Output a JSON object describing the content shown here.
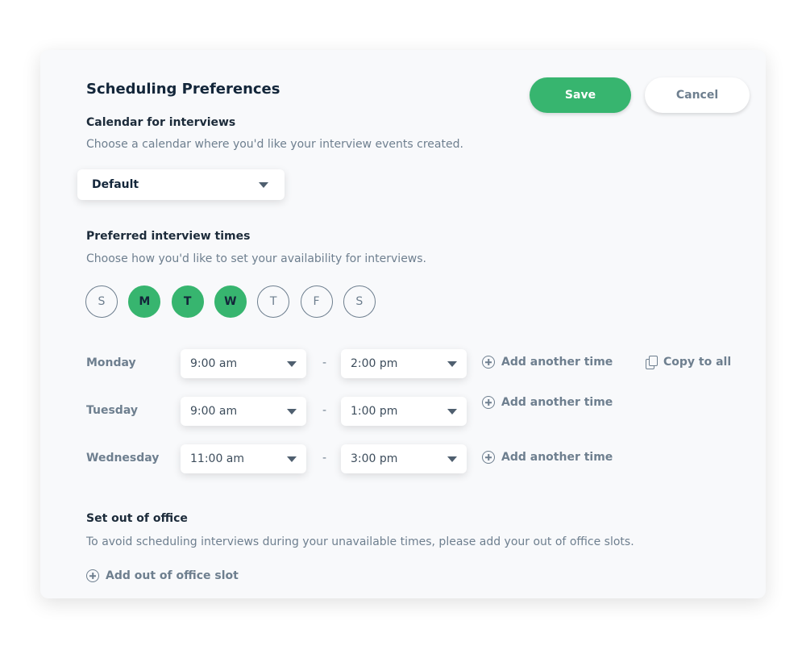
{
  "header": {
    "title": "Scheduling Preferences",
    "save_label": "Save",
    "cancel_label": "Cancel"
  },
  "calendar": {
    "label": "Calendar for interviews",
    "description": "Choose a calendar where you'd like your interview events created.",
    "selected": "Default"
  },
  "times": {
    "label": "Preferred interview times",
    "description": "Choose how you'd like to set your availability for interviews.",
    "days": [
      {
        "letter": "S",
        "selected": false
      },
      {
        "letter": "M",
        "selected": true
      },
      {
        "letter": "T",
        "selected": true
      },
      {
        "letter": "W",
        "selected": true
      },
      {
        "letter": "T",
        "selected": false
      },
      {
        "letter": "F",
        "selected": false
      },
      {
        "letter": "S",
        "selected": false
      }
    ],
    "separator": "-",
    "add_time_label": "Add another time",
    "copy_to_all_label": "Copy to all",
    "rows": [
      {
        "day": "Monday",
        "start": "9:00 am",
        "end": "2:00 pm"
      },
      {
        "day": "Tuesday",
        "start": "9:00 am",
        "end": "1:00 pm"
      },
      {
        "day": "Wednesday",
        "start": "11:00 am",
        "end": "3:00 pm"
      }
    ]
  },
  "out_of_office": {
    "label": "Set out of office",
    "description": "To avoid scheduling interviews during your unavailable times, please add your out of office slots.",
    "add_label": "Add out of office slot"
  },
  "colors": {
    "accent": "#37b56f",
    "text": "#13263a",
    "muted": "#6e7f8f"
  }
}
